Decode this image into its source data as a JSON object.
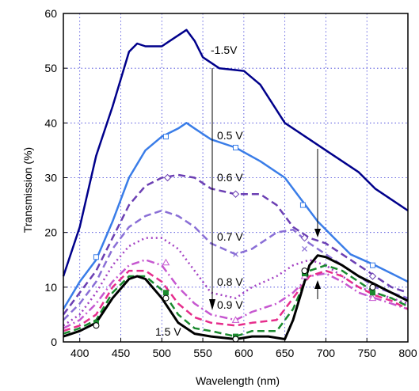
{
  "chart_data": {
    "type": "line",
    "title": "",
    "xlabel": "Wavelength (nm)",
    "ylabel": "Transmission (%)",
    "xlim": [
      380,
      800
    ],
    "ylim": [
      0,
      60
    ],
    "xticks": [
      "400",
      "450",
      "500",
      "550",
      "600",
      "650",
      "700",
      "750",
      "800"
    ],
    "yticks": [
      "0",
      "10",
      "20",
      "30",
      "40",
      "50",
      "60"
    ],
    "grid": true,
    "legend": "none",
    "annotations": [
      "-1.5V",
      "0.5 V",
      "0.6 V",
      "0.7 V",
      "0.8 V",
      "0.9 V",
      "1.5 V"
    ],
    "series": [
      {
        "name": "-1.5V",
        "color": "#00008b",
        "style": "solid",
        "marker": "none",
        "points": [
          [
            380,
            12
          ],
          [
            400,
            21
          ],
          [
            420,
            34
          ],
          [
            440,
            43
          ],
          [
            460,
            53
          ],
          [
            470,
            54.5
          ],
          [
            480,
            54
          ],
          [
            500,
            54
          ],
          [
            510,
            55
          ],
          [
            530,
            57
          ],
          [
            540,
            55
          ],
          [
            550,
            52
          ],
          [
            570,
            50
          ],
          [
            600,
            49.5
          ],
          [
            620,
            47
          ],
          [
            650,
            40
          ],
          [
            680,
            37
          ],
          [
            700,
            35
          ],
          [
            720,
            33
          ],
          [
            740,
            31
          ],
          [
            760,
            28
          ],
          [
            780,
            26
          ],
          [
            800,
            24
          ]
        ]
      },
      {
        "name": "0.5 V",
        "color": "#3a7de8",
        "style": "solid",
        "marker": "square",
        "points": [
          [
            380,
            6
          ],
          [
            400,
            11
          ],
          [
            420,
            15
          ],
          [
            440,
            22
          ],
          [
            460,
            30
          ],
          [
            480,
            35
          ],
          [
            500,
            37.5
          ],
          [
            520,
            39
          ],
          [
            530,
            40
          ],
          [
            540,
            39
          ],
          [
            560,
            37
          ],
          [
            590,
            35.5
          ],
          [
            620,
            33
          ],
          [
            650,
            30
          ],
          [
            670,
            26
          ],
          [
            690,
            22
          ],
          [
            710,
            19
          ],
          [
            730,
            16
          ],
          [
            760,
            14
          ],
          [
            780,
            12.5
          ],
          [
            800,
            11
          ]
        ]
      },
      {
        "name": "0.6 V",
        "color": "#6b3fb3",
        "style": "dashed",
        "marker": "diamond",
        "points": [
          [
            380,
            5
          ],
          [
            400,
            9
          ],
          [
            420,
            13
          ],
          [
            440,
            19
          ],
          [
            460,
            25
          ],
          [
            480,
            28.5
          ],
          [
            500,
            30
          ],
          [
            520,
            30.5
          ],
          [
            540,
            30
          ],
          [
            560,
            28
          ],
          [
            590,
            27
          ],
          [
            620,
            27
          ],
          [
            640,
            25
          ],
          [
            660,
            21
          ],
          [
            680,
            19
          ],
          [
            700,
            18
          ],
          [
            720,
            16
          ],
          [
            740,
            14
          ],
          [
            760,
            12
          ],
          [
            780,
            10
          ],
          [
            800,
            9
          ]
        ]
      },
      {
        "name": "0.7 V",
        "color": "#8a6fd6",
        "style": "dashed",
        "marker": "x",
        "points": [
          [
            380,
            4
          ],
          [
            400,
            7
          ],
          [
            420,
            11
          ],
          [
            440,
            17
          ],
          [
            460,
            21
          ],
          [
            480,
            23
          ],
          [
            500,
            24
          ],
          [
            520,
            23
          ],
          [
            540,
            21
          ],
          [
            560,
            18
          ],
          [
            590,
            16
          ],
          [
            610,
            17
          ],
          [
            640,
            20
          ],
          [
            660,
            20.5
          ],
          [
            680,
            18
          ],
          [
            700,
            16
          ],
          [
            720,
            14
          ],
          [
            740,
            12
          ],
          [
            760,
            10
          ],
          [
            780,
            9
          ],
          [
            800,
            8
          ]
        ]
      },
      {
        "name": "0.8 V",
        "color": "#a23ec2",
        "style": "dotted",
        "marker": "none",
        "points": [
          [
            380,
            3
          ],
          [
            400,
            5
          ],
          [
            420,
            9
          ],
          [
            440,
            14
          ],
          [
            460,
            17.5
          ],
          [
            480,
            19
          ],
          [
            500,
            19
          ],
          [
            520,
            17
          ],
          [
            540,
            13
          ],
          [
            560,
            9
          ],
          [
            590,
            8
          ],
          [
            610,
            10
          ],
          [
            640,
            12
          ],
          [
            660,
            14
          ],
          [
            680,
            15
          ],
          [
            700,
            14
          ],
          [
            720,
            12
          ],
          [
            740,
            10
          ],
          [
            760,
            9
          ],
          [
            780,
            8
          ],
          [
            800,
            7
          ]
        ]
      },
      {
        "name": "0.9 V",
        "color": "#c657d0",
        "style": "dashdot",
        "marker": "triangle",
        "points": [
          [
            380,
            2.5
          ],
          [
            400,
            4
          ],
          [
            420,
            7
          ],
          [
            440,
            11
          ],
          [
            460,
            14
          ],
          [
            480,
            15
          ],
          [
            500,
            14
          ],
          [
            520,
            10
          ],
          [
            540,
            7
          ],
          [
            560,
            5
          ],
          [
            590,
            4
          ],
          [
            610,
            5.5
          ],
          [
            640,
            7
          ],
          [
            660,
            9
          ],
          [
            680,
            12
          ],
          [
            700,
            12.5
          ],
          [
            720,
            11
          ],
          [
            740,
            9
          ],
          [
            760,
            8
          ],
          [
            780,
            7
          ],
          [
            800,
            6
          ]
        ]
      },
      {
        "name": "",
        "color": "#e62d8c",
        "style": "dashed",
        "marker": "none",
        "points": [
          [
            380,
            2
          ],
          [
            400,
            3
          ],
          [
            420,
            5
          ],
          [
            440,
            10
          ],
          [
            460,
            13
          ],
          [
            480,
            13
          ],
          [
            500,
            11
          ],
          [
            520,
            7
          ],
          [
            540,
            4.5
          ],
          [
            560,
            3.5
          ],
          [
            590,
            3
          ],
          [
            610,
            3.5
          ],
          [
            640,
            4
          ],
          [
            660,
            8
          ],
          [
            680,
            12
          ],
          [
            700,
            13
          ],
          [
            720,
            12
          ],
          [
            740,
            10
          ],
          [
            760,
            8.5
          ],
          [
            780,
            7.5
          ],
          [
            800,
            6
          ]
        ]
      },
      {
        "name": "",
        "color": "#1a8a2e",
        "style": "dashed",
        "marker": "square",
        "points": [
          [
            380,
            1.5
          ],
          [
            400,
            2.5
          ],
          [
            420,
            4
          ],
          [
            440,
            9
          ],
          [
            460,
            12
          ],
          [
            480,
            12
          ],
          [
            500,
            9.5
          ],
          [
            520,
            5
          ],
          [
            540,
            2.5
          ],
          [
            560,
            2
          ],
          [
            590,
            1
          ],
          [
            610,
            2
          ],
          [
            640,
            2
          ],
          [
            660,
            6
          ],
          [
            680,
            13
          ],
          [
            700,
            14
          ],
          [
            720,
            13
          ],
          [
            740,
            11
          ],
          [
            760,
            9
          ],
          [
            780,
            8
          ],
          [
            800,
            6.5
          ]
        ]
      },
      {
        "name": "1.5 V",
        "color": "#000000",
        "style": "solid",
        "marker": "circle",
        "points": [
          [
            380,
            1
          ],
          [
            400,
            2
          ],
          [
            420,
            3.5
          ],
          [
            440,
            8
          ],
          [
            460,
            11.5
          ],
          [
            470,
            12
          ],
          [
            480,
            11.5
          ],
          [
            500,
            8
          ],
          [
            520,
            3.5
          ],
          [
            540,
            1.5
          ],
          [
            560,
            1
          ],
          [
            590,
            0.5
          ],
          [
            610,
            1
          ],
          [
            630,
            1
          ],
          [
            650,
            0.5
          ],
          [
            660,
            4
          ],
          [
            670,
            9
          ],
          [
            680,
            14
          ],
          [
            690,
            15.8
          ],
          [
            700,
            15.5
          ],
          [
            720,
            14
          ],
          [
            740,
            12
          ],
          [
            760,
            10.5
          ],
          [
            780,
            9
          ],
          [
            800,
            7.5
          ]
        ]
      }
    ],
    "markers": {
      "0.5 V": [
        [
          420,
          15.5
        ],
        [
          505,
          37.5
        ],
        [
          590,
          35.5
        ],
        [
          672,
          25
        ],
        [
          757,
          14
        ]
      ],
      "0.6 V": [
        [
          507,
          30
        ],
        [
          590,
          27
        ],
        [
          674,
          19
        ],
        [
          757,
          12
        ]
      ],
      "0.7 V": [
        [
          590,
          16
        ],
        [
          674,
          17
        ],
        [
          757,
          10
        ]
      ],
      "0.9 V": [
        [
          505,
          14.5
        ],
        [
          590,
          4
        ],
        [
          674,
          12
        ],
        [
          757,
          8
        ]
      ],
      "": [
        [
          420,
          3.5
        ],
        [
          505,
          9
        ],
        [
          590,
          1
        ],
        [
          674,
          12.5
        ],
        [
          757,
          9
        ]
      ],
      "1.5 V": [
        [
          420,
          3
        ],
        [
          505,
          8
        ],
        [
          590,
          0.5
        ],
        [
          674,
          13
        ],
        [
          757,
          10
        ]
      ]
    }
  }
}
